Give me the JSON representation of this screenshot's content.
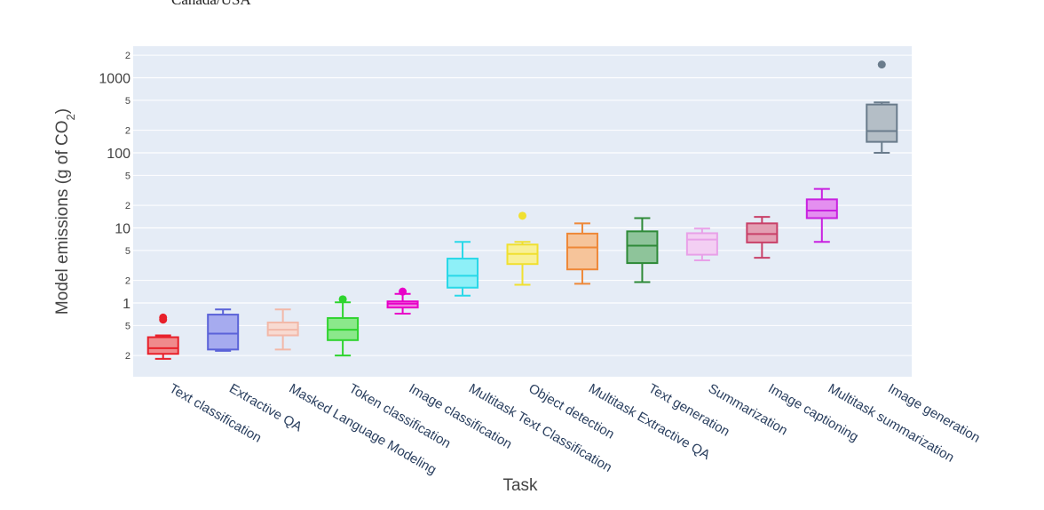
{
  "top_fragment": "Canada/USA",
  "chart_data": {
    "type": "box",
    "xlabel": "Task",
    "ylabel_main": "Model emissions (g of CO",
    "ylabel_sub": "2",
    "ylabel_end": ")",
    "yscale": "log",
    "ylim": [
      0.13,
      3000
    ],
    "grid": true,
    "y_major_ticks": [
      {
        "value": 1,
        "label": "1"
      },
      {
        "value": 10,
        "label": "10"
      },
      {
        "value": 100,
        "label": "100"
      },
      {
        "value": 1000,
        "label": "1000"
      }
    ],
    "y_minor_ticks": [
      {
        "value": 0.2,
        "label": "2"
      },
      {
        "value": 0.5,
        "label": "5"
      },
      {
        "value": 2,
        "label": "2"
      },
      {
        "value": 5,
        "label": "5"
      },
      {
        "value": 20,
        "label": "2"
      },
      {
        "value": 50,
        "label": "5"
      },
      {
        "value": 200,
        "label": "2"
      },
      {
        "value": 500,
        "label": "5"
      },
      {
        "value": 2000,
        "label": "2"
      }
    ],
    "categories": [
      {
        "label": "Text classification",
        "color": "#e8202a",
        "fill": "#f08a8c",
        "min": 0.18,
        "q1": 0.21,
        "median": 0.25,
        "q3": 0.35,
        "max": 0.37,
        "outliers": [
          0.6,
          0.64
        ]
      },
      {
        "label": "Extractive QA",
        "color": "#5a62d8",
        "fill": "#a6abef",
        "min": 0.23,
        "q1": 0.24,
        "median": 0.39,
        "q3": 0.7,
        "max": 0.82,
        "outliers": []
      },
      {
        "label": "Masked Language Modeling",
        "color": "#f2b8a8",
        "fill": "#f8dad1",
        "min": 0.24,
        "q1": 0.37,
        "median": 0.44,
        "q3": 0.55,
        "max": 0.82,
        "outliers": []
      },
      {
        "label": "Token classification",
        "color": "#2ed42e",
        "fill": "#8be88b",
        "min": 0.2,
        "q1": 0.32,
        "median": 0.44,
        "q3": 0.63,
        "max": 1.02,
        "outliers": [
          1.12
        ]
      },
      {
        "label": "Image classification",
        "color": "#e800c8",
        "fill": "#f07ee0",
        "min": 0.72,
        "q1": 0.87,
        "median": 0.98,
        "q3": 1.05,
        "max": 1.32,
        "outliers": [
          1.42
        ]
      },
      {
        "label": "Multitask Text Classification",
        "color": "#28d8e8",
        "fill": "#8ef0f8",
        "min": 1.25,
        "q1": 1.6,
        "median": 2.3,
        "q3": 3.9,
        "max": 6.5,
        "outliers": []
      },
      {
        "label": "Object detection",
        "color": "#f0e030",
        "fill": "#f8f098",
        "min": 1.75,
        "q1": 3.3,
        "median": 4.5,
        "q3": 6.0,
        "max": 6.5,
        "outliers": [
          14.5
        ]
      },
      {
        "label": "Multitask Extractive QA",
        "color": "#ee8838",
        "fill": "#f6c49a",
        "min": 1.8,
        "q1": 2.8,
        "median": 5.5,
        "q3": 8.4,
        "max": 11.5,
        "outliers": []
      },
      {
        "label": "Text generation",
        "color": "#2e8a38",
        "fill": "#8ec49a",
        "min": 1.9,
        "q1": 3.4,
        "median": 5.8,
        "q3": 9.0,
        "max": 13.5,
        "outliers": []
      },
      {
        "label": "Summarization",
        "color": "#e8a0e8",
        "fill": "#f3cff3",
        "min": 3.7,
        "q1": 4.4,
        "median": 7.0,
        "q3": 8.5,
        "max": 9.8,
        "outliers": []
      },
      {
        "label": "Image captioning",
        "color": "#c84068",
        "fill": "#e39fb3",
        "min": 4.0,
        "q1": 6.4,
        "median": 8.3,
        "q3": 11.5,
        "max": 14.0,
        "outliers": []
      },
      {
        "label": "Multitask summarization",
        "color": "#c820e0",
        "fill": "#e48ff0",
        "min": 6.5,
        "q1": 13.5,
        "median": 17.0,
        "q3": 24.0,
        "max": 33.0,
        "outliers": []
      },
      {
        "label": "Image generation",
        "color": "#6a7c8c",
        "fill": "#b4bec6",
        "min": 100,
        "q1": 140,
        "median": 195,
        "q3": 440,
        "max": 470,
        "outliers": [
          1500
        ]
      }
    ]
  }
}
